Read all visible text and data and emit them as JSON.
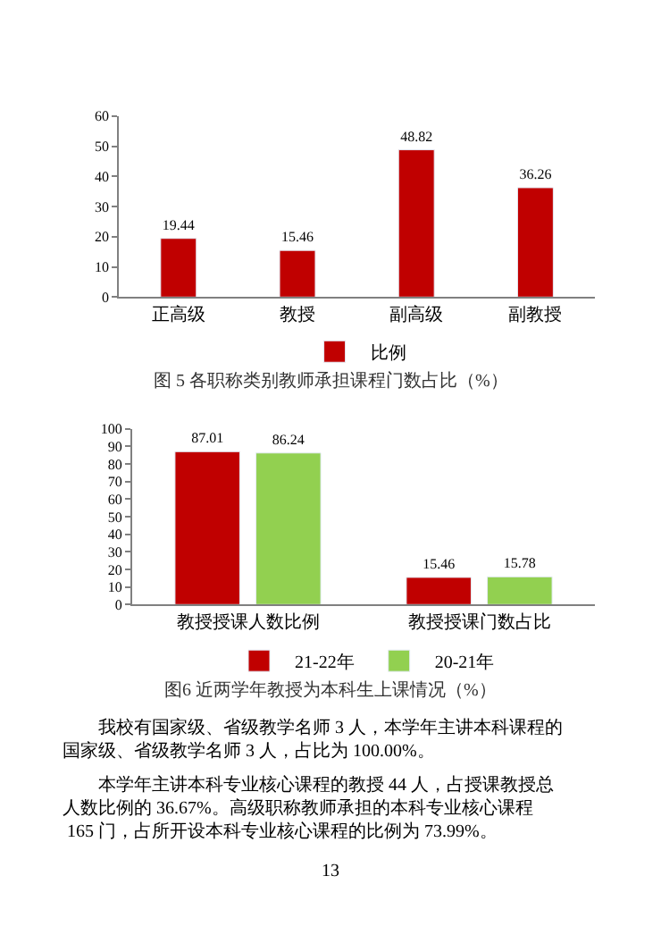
{
  "chart_data": [
    {
      "type": "bar",
      "title": "图 5 各职称类别教师承担课程门数占比（%）",
      "categories": [
        "正高级",
        "教授",
        "副高级",
        "副教授"
      ],
      "series": [
        {
          "name": "比例",
          "color": "#c00000",
          "values": [
            19.44,
            15.46,
            48.82,
            36.26
          ]
        }
      ],
      "ylim": [
        0,
        60
      ],
      "yticks": [
        0,
        10,
        20,
        30,
        40,
        50,
        60
      ],
      "legend": "bottom",
      "data_labels": true
    },
    {
      "type": "bar",
      "title": "图6 近两学年教授为本科生上课情况（%）",
      "categories": [
        "教授授课人数比例",
        "教授授课门数占比"
      ],
      "series": [
        {
          "name": "21-22年",
          "color": "#c00000",
          "values": [
            87.01,
            15.46
          ]
        },
        {
          "name": "20-21年",
          "color": "#92d050",
          "values": [
            86.24,
            15.78
          ]
        }
      ],
      "ylim": [
        0,
        100
      ],
      "yticks": [
        0,
        10,
        20,
        30,
        40,
        50,
        60,
        70,
        80,
        90,
        100
      ],
      "legend": "bottom",
      "data_labels": true,
      "annotations": [
        "我校有国家级、省级教学名师 3 人，本学年主讲本科课程的国家级、省级教学名师 3 人，占比为 100.00%。",
        "本学年主讲本科专业核心课程的教授 44 人，占授课教授总人数比例的 36.67%。高级职称教师承担的本科专业核心课程 165 门，占所开设本科专业核心课程的比例为 73.99%。",
        "13"
      ]
    }
  ]
}
